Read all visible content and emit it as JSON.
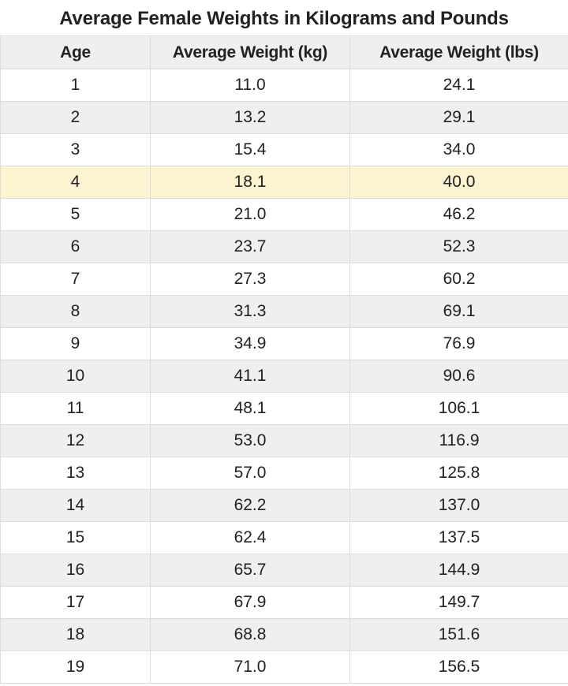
{
  "chart_data": {
    "type": "table",
    "title": "Average Female Weights in Kilograms and Pounds",
    "columns": [
      "Age",
      "Average Weight (kg)",
      "Average Weight (lbs)"
    ],
    "rows": [
      [
        "1",
        "11.0",
        "24.1"
      ],
      [
        "2",
        "13.2",
        "29.1"
      ],
      [
        "3",
        "15.4",
        "34.0"
      ],
      [
        "4",
        "18.1",
        "40.0"
      ],
      [
        "5",
        "21.0",
        "46.2"
      ],
      [
        "6",
        "23.7",
        "52.3"
      ],
      [
        "7",
        "27.3",
        "60.2"
      ],
      [
        "8",
        "31.3",
        "69.1"
      ],
      [
        "9",
        "34.9",
        "76.9"
      ],
      [
        "10",
        "41.1",
        "90.6"
      ],
      [
        "11",
        "48.1",
        "106.1"
      ],
      [
        "12",
        "53.0",
        "116.9"
      ],
      [
        "13",
        "57.0",
        "125.8"
      ],
      [
        "14",
        "62.2",
        "137.0"
      ],
      [
        "15",
        "62.4",
        "137.5"
      ],
      [
        "16",
        "65.7",
        "144.9"
      ],
      [
        "17",
        "67.9",
        "149.7"
      ],
      [
        "18",
        "68.8",
        "151.6"
      ],
      [
        "19",
        "71.0",
        "156.5"
      ]
    ],
    "highlighted_row_age": "4",
    "colors": {
      "header_bg": "#efefef",
      "stripe_bg": "#efefef",
      "highlight_bg": "#fcf3d0",
      "grid": "#dcdcdc"
    }
  }
}
